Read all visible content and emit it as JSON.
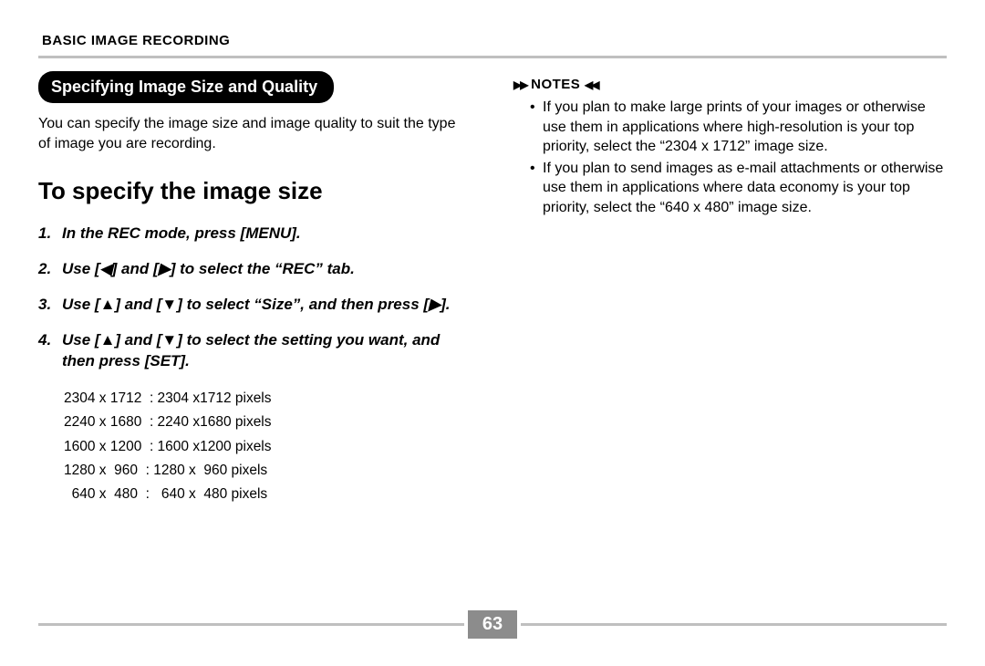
{
  "header": {
    "section_title": "BASIC IMAGE RECORDING"
  },
  "left": {
    "pill_title": "Specifying Image Size and Quality",
    "intro": "You can specify the image size and image quality to suit the type of image you are recording.",
    "subheading": "To specify the image size",
    "steps": [
      "In the REC mode, press [MENU].",
      "Use [◀] and [▶] to select the “REC” tab.",
      "Use [▲] and [▼] to select “Size”, and then press [▶].",
      "Use [▲] and [▼] to select the setting you want, and then press [SET]."
    ],
    "size_table": "2304 x 1712  : 2304 x1712 pixels\n2240 x 1680  : 2240 x1680 pixels\n1600 x 1200  : 1600 x1200 pixels\n1280 x  960  : 1280 x  960 pixels\n  640 x  480  :   640 x  480 pixels"
  },
  "right": {
    "notes_label": "NOTES",
    "notes": [
      "If you plan to make large prints of your images or otherwise use them in applications where high-resolution is your top priority, select the “2304 x 1712” image size.",
      "If you plan to send images as e-mail attachments or otherwise use them in applications where data economy is your top priority, select the “640 x 480” image size."
    ]
  },
  "footer": {
    "page_number": "63"
  },
  "colors": {
    "rule": "#bfbfbf",
    "pagebox_bg": "#8c8c8c",
    "text": "#000000",
    "pill_bg": "#000000",
    "pill_fg": "#ffffff"
  }
}
